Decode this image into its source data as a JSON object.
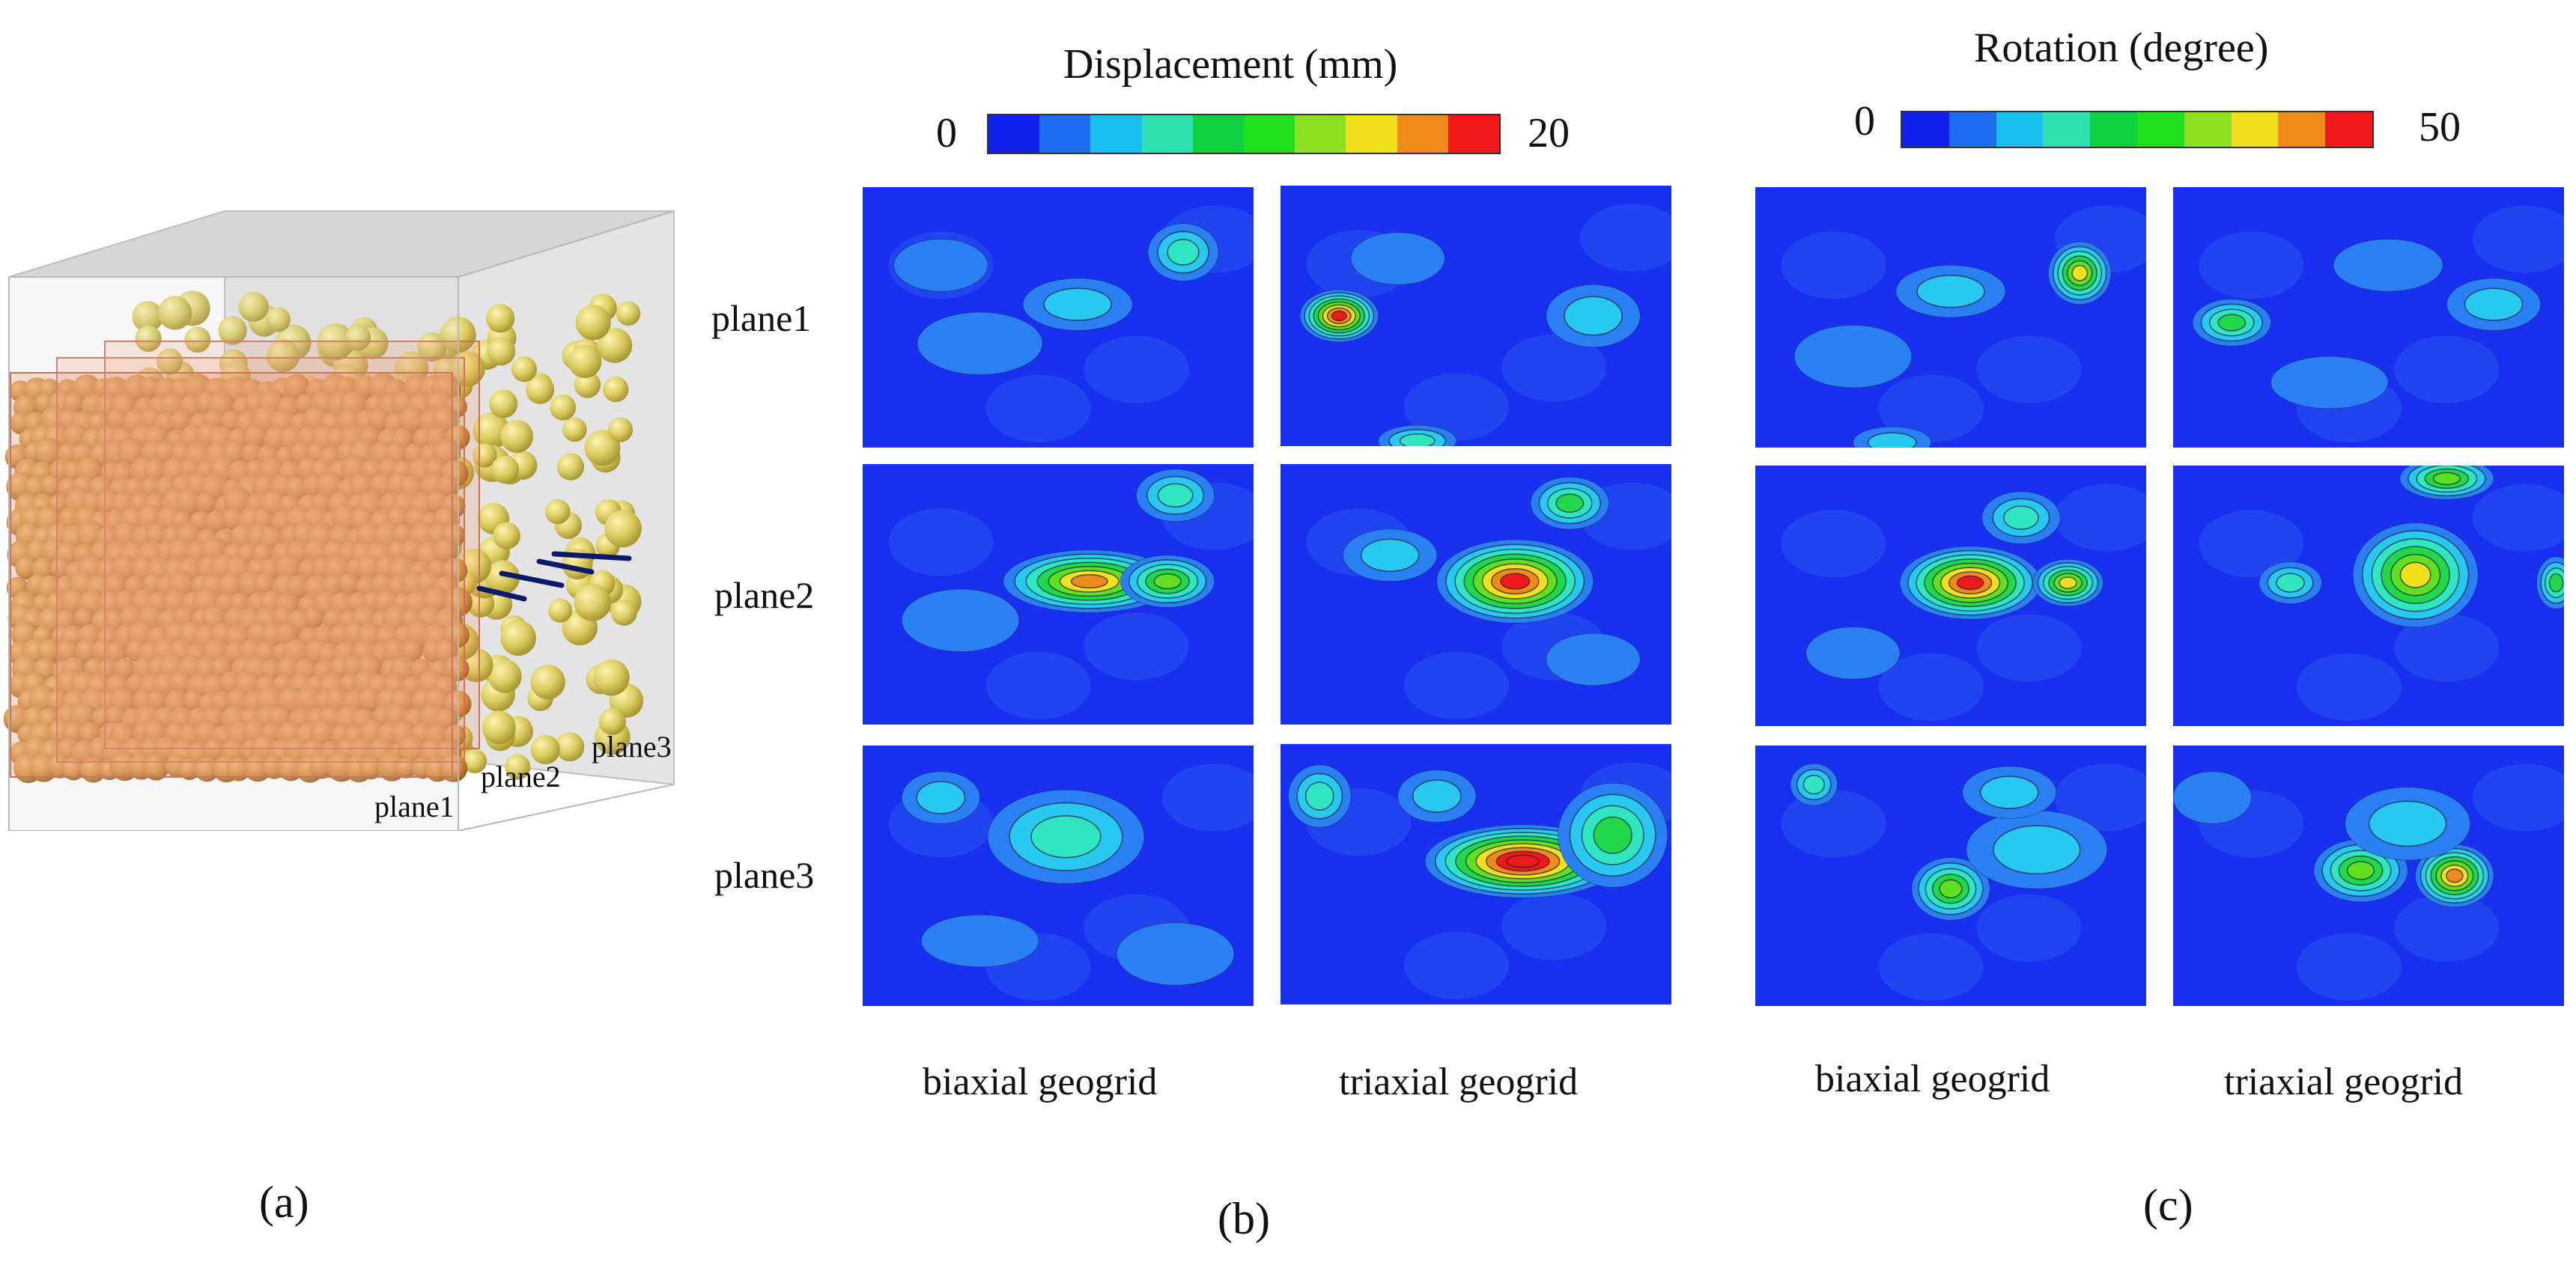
{
  "panel_labels": {
    "a": "(a)",
    "b": "(b)",
    "c": "(c)"
  },
  "model": {
    "plane_labels": [
      "plane1",
      "plane2",
      "plane3"
    ]
  },
  "displacement": {
    "title": "Displacement (mm)",
    "scale_min": "0",
    "scale_max": "20",
    "colorbar": [
      "#1020e8",
      "#1e6cf0",
      "#18c0f0",
      "#30e0b0",
      "#10d040",
      "#20e020",
      "#8ce020",
      "#f0e020",
      "#f08a1a",
      "#f01818"
    ]
  },
  "rotation": {
    "title": "Rotation (degree)",
    "scale_min": "0",
    "scale_max": "50",
    "colorbar": [
      "#1020e8",
      "#1e6cf0",
      "#18c0f0",
      "#30e0b0",
      "#10d040",
      "#20e020",
      "#8ce020",
      "#f0e020",
      "#f08a1a",
      "#f01818"
    ]
  },
  "row_labels": [
    "plane1",
    "plane2",
    "plane3"
  ],
  "column_labels": [
    "biaxial geogrid",
    "triaxial geogrid",
    "biaxial geogrid",
    "triaxial geogrid"
  ],
  "contour_colors": [
    "#1a30f0",
    "#2a80f2",
    "#28c8f0",
    "#30e6c0",
    "#20d84a",
    "#60e020",
    "#f0e020",
    "#f08a1a",
    "#f01818"
  ]
}
